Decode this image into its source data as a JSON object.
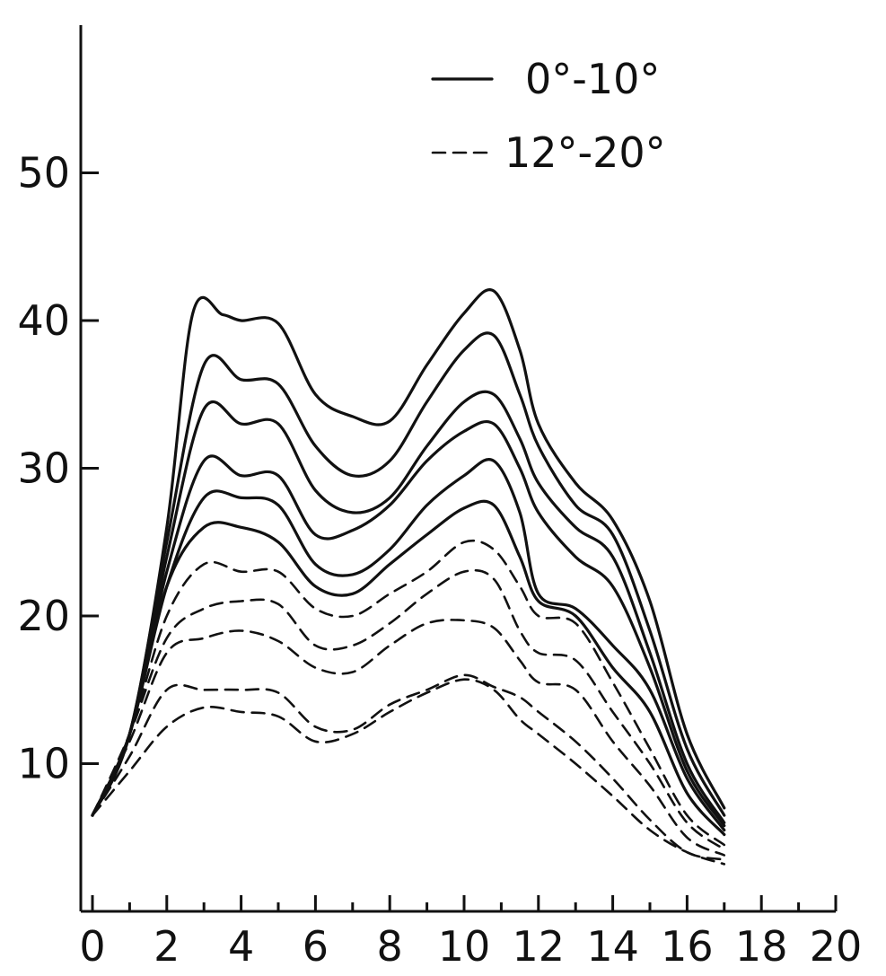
{
  "chart_data": {
    "type": "line",
    "title": "",
    "xlabel": "",
    "ylabel": "",
    "xlim": [
      0,
      20
    ],
    "ylim": [
      0,
      60
    ],
    "grid": false,
    "legend_position": "top-right",
    "x_ticks": [
      "0",
      "2",
      "4",
      "6",
      "8",
      "10",
      "12",
      "14",
      "16",
      "18",
      "20"
    ],
    "y_ticks": [
      "10",
      "20",
      "30",
      "40",
      "50"
    ],
    "legend": [
      {
        "label": "0°-10°",
        "style": "solid"
      },
      {
        "label": "12°-20°",
        "style": "dashed"
      }
    ],
    "series": [
      {
        "style": "solid",
        "points": [
          [
            0,
            6.5
          ],
          [
            1,
            12
          ],
          [
            2,
            26
          ],
          [
            2.7,
            40.5
          ],
          [
            3.5,
            40.4
          ],
          [
            4,
            40
          ],
          [
            5,
            39.8
          ],
          [
            6,
            35
          ],
          [
            7,
            33.5
          ],
          [
            8,
            33.2
          ],
          [
            9,
            37
          ],
          [
            10,
            40.5
          ],
          [
            10.8,
            42
          ],
          [
            11.5,
            38
          ],
          [
            12,
            33
          ],
          [
            13,
            29
          ],
          [
            14,
            26.5
          ],
          [
            15,
            21
          ],
          [
            16,
            12
          ],
          [
            17,
            7
          ]
        ]
      },
      {
        "style": "solid",
        "points": [
          [
            0,
            6.5
          ],
          [
            1,
            12
          ],
          [
            2,
            25
          ],
          [
            3,
            37
          ],
          [
            4,
            36
          ],
          [
            5,
            35.7
          ],
          [
            6,
            31.5
          ],
          [
            7,
            29.5
          ],
          [
            8,
            30.5
          ],
          [
            9,
            34.5
          ],
          [
            10,
            38
          ],
          [
            10.8,
            39
          ],
          [
            11.5,
            35
          ],
          [
            12,
            31.5
          ],
          [
            13,
            27.5
          ],
          [
            14,
            25.5
          ],
          [
            15,
            19
          ],
          [
            16,
            11
          ],
          [
            17,
            6.5
          ]
        ]
      },
      {
        "style": "solid",
        "points": [
          [
            0,
            6.5
          ],
          [
            1,
            12
          ],
          [
            2,
            24
          ],
          [
            3,
            34
          ],
          [
            4,
            33
          ],
          [
            5,
            33
          ],
          [
            6,
            28.5
          ],
          [
            7,
            27
          ],
          [
            8,
            28
          ],
          [
            9,
            31.5
          ],
          [
            10,
            34.5
          ],
          [
            10.8,
            35
          ],
          [
            11.5,
            32
          ],
          [
            12,
            29
          ],
          [
            13,
            26
          ],
          [
            14,
            24
          ],
          [
            15,
            17.5
          ],
          [
            16,
            10
          ],
          [
            17,
            6
          ]
        ]
      },
      {
        "style": "solid",
        "points": [
          [
            0,
            6.5
          ],
          [
            1,
            12
          ],
          [
            2,
            23
          ],
          [
            3,
            30.5
          ],
          [
            4,
            29.5
          ],
          [
            5,
            29.5
          ],
          [
            6,
            25.5
          ],
          [
            7,
            25.8
          ],
          [
            8,
            27.5
          ],
          [
            9,
            30.5
          ],
          [
            10,
            32.5
          ],
          [
            10.8,
            33
          ],
          [
            11.5,
            30
          ],
          [
            12,
            27
          ],
          [
            13,
            24
          ],
          [
            14,
            22
          ],
          [
            15,
            16.5
          ],
          [
            16,
            9.5
          ],
          [
            17,
            5.8
          ]
        ]
      },
      {
        "style": "solid",
        "points": [
          [
            0,
            6.5
          ],
          [
            1,
            12
          ],
          [
            2,
            22
          ],
          [
            3,
            28
          ],
          [
            4,
            28
          ],
          [
            5,
            27.5
          ],
          [
            6,
            23.5
          ],
          [
            7,
            22.8
          ],
          [
            8,
            24.5
          ],
          [
            9,
            27.5
          ],
          [
            10,
            29.5
          ],
          [
            10.8,
            30.5
          ],
          [
            11.5,
            27
          ],
          [
            12,
            21.5
          ],
          [
            13,
            20.5
          ],
          [
            14,
            18
          ],
          [
            15,
            15
          ],
          [
            16,
            9
          ],
          [
            17,
            5.5
          ]
        ]
      },
      {
        "style": "solid",
        "points": [
          [
            0,
            6.5
          ],
          [
            1,
            12
          ],
          [
            2,
            22
          ],
          [
            3,
            26
          ],
          [
            4,
            26
          ],
          [
            5,
            25
          ],
          [
            6,
            22
          ],
          [
            7,
            21.5
          ],
          [
            8,
            23.5
          ],
          [
            9,
            25.5
          ],
          [
            10,
            27.3
          ],
          [
            10.8,
            27.5
          ],
          [
            11.5,
            24
          ],
          [
            12,
            21
          ],
          [
            13,
            20
          ],
          [
            14,
            16.5
          ],
          [
            15,
            13.5
          ],
          [
            16,
            8
          ],
          [
            17,
            5.2
          ]
        ]
      },
      {
        "style": "dashed",
        "points": [
          [
            0,
            6.5
          ],
          [
            1,
            12
          ],
          [
            2,
            20
          ],
          [
            3,
            23.5
          ],
          [
            4,
            23
          ],
          [
            5,
            23
          ],
          [
            6,
            20.5
          ],
          [
            7,
            20
          ],
          [
            8,
            21.5
          ],
          [
            9,
            23
          ],
          [
            10,
            25
          ],
          [
            10.8,
            24.5
          ],
          [
            11.5,
            22
          ],
          [
            12,
            20
          ],
          [
            13,
            19.5
          ],
          [
            14,
            15.5
          ],
          [
            15,
            11
          ],
          [
            16,
            6.5
          ],
          [
            17,
            4.5
          ]
        ]
      },
      {
        "style": "dashed",
        "points": [
          [
            0,
            6.5
          ],
          [
            1,
            12
          ],
          [
            2,
            18.5
          ],
          [
            3,
            20.5
          ],
          [
            4,
            21
          ],
          [
            5,
            20.8
          ],
          [
            6,
            18
          ],
          [
            7,
            18
          ],
          [
            8,
            19.5
          ],
          [
            9,
            21.5
          ],
          [
            10,
            23
          ],
          [
            10.8,
            22.5
          ],
          [
            11.5,
            19
          ],
          [
            12,
            17.5
          ],
          [
            13,
            17
          ],
          [
            14,
            13.5
          ],
          [
            15,
            10
          ],
          [
            16,
            6
          ],
          [
            17,
            4.2
          ]
        ]
      },
      {
        "style": "dashed",
        "points": [
          [
            0,
            6.5
          ],
          [
            1,
            11.5
          ],
          [
            2,
            17.5
          ],
          [
            3,
            18.5
          ],
          [
            4,
            19
          ],
          [
            5,
            18.3
          ],
          [
            6,
            16.5
          ],
          [
            7,
            16.2
          ],
          [
            8,
            18
          ],
          [
            9,
            19.5
          ],
          [
            10,
            19.7
          ],
          [
            10.8,
            19.2
          ],
          [
            11.5,
            17
          ],
          [
            12,
            15.5
          ],
          [
            13,
            15
          ],
          [
            14,
            11.5
          ],
          [
            15,
            8.5
          ],
          [
            16,
            5
          ],
          [
            17,
            3.8
          ]
        ]
      },
      {
        "style": "dashed",
        "points": [
          [
            0,
            6.5
          ],
          [
            1,
            10.5
          ],
          [
            2,
            15
          ],
          [
            3,
            15
          ],
          [
            4,
            15
          ],
          [
            5,
            14.8
          ],
          [
            6,
            12.5
          ],
          [
            7,
            12.3
          ],
          [
            8,
            14
          ],
          [
            9,
            15
          ],
          [
            10,
            16
          ],
          [
            10.8,
            15.2
          ],
          [
            11.5,
            14.5
          ],
          [
            12,
            13.5
          ],
          [
            13,
            11.5
          ],
          [
            14,
            9
          ],
          [
            15,
            6.2
          ],
          [
            16,
            4
          ],
          [
            17,
            3.5
          ]
        ]
      },
      {
        "style": "dashed",
        "points": [
          [
            0,
            6.5
          ],
          [
            1,
            9.5
          ],
          [
            2,
            12.5
          ],
          [
            3,
            13.8
          ],
          [
            4,
            13.5
          ],
          [
            5,
            13.2
          ],
          [
            6,
            11.5
          ],
          [
            7,
            12
          ],
          [
            8,
            13.5
          ],
          [
            9,
            14.8
          ],
          [
            10,
            15.7
          ],
          [
            10.8,
            15
          ],
          [
            11.5,
            13
          ],
          [
            12,
            12
          ],
          [
            13,
            10
          ],
          [
            14,
            7.8
          ],
          [
            15,
            5.5
          ],
          [
            16,
            4
          ],
          [
            17,
            3.2
          ]
        ]
      }
    ]
  }
}
